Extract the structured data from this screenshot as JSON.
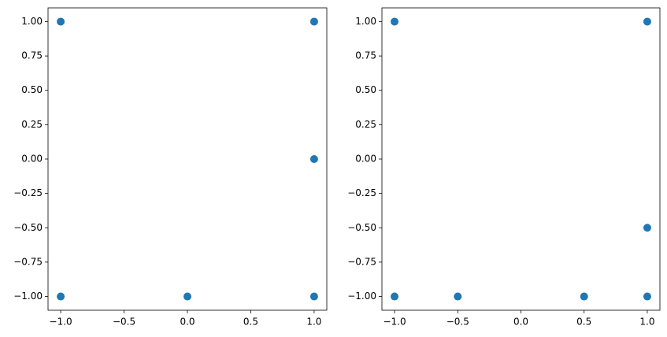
{
  "chart_data": [
    {
      "type": "scatter",
      "color": "#1f77b4",
      "x": [
        -1,
        1,
        1,
        -1,
        0,
        1
      ],
      "values": [
        1,
        1,
        0,
        -1,
        -1,
        -1
      ],
      "xlim": [
        -1.1,
        1.1
      ],
      "ylim": [
        -1.1,
        1.1
      ],
      "xticks": [
        {
          "value": -1,
          "label": "−1.0"
        },
        {
          "value": -0.5,
          "label": "−0.5"
        },
        {
          "value": 0,
          "label": "0.0"
        },
        {
          "value": 0.5,
          "label": "0.5"
        },
        {
          "value": 1,
          "label": "1.0"
        }
      ],
      "yticks": [
        {
          "value": -1,
          "label": "−1.00"
        },
        {
          "value": -0.75,
          "label": "−0.75"
        },
        {
          "value": -0.5,
          "label": "−0.50"
        },
        {
          "value": -0.25,
          "label": "−0.25"
        },
        {
          "value": 0,
          "label": "0.00"
        },
        {
          "value": 0.25,
          "label": "0.25"
        },
        {
          "value": 0.5,
          "label": "0.50"
        },
        {
          "value": 0.75,
          "label": "0.75"
        },
        {
          "value": 1,
          "label": "1.00"
        }
      ]
    },
    {
      "type": "scatter",
      "color": "#1f77b4",
      "x": [
        -1,
        1,
        1,
        -1,
        -0.5,
        0.5,
        1
      ],
      "values": [
        1,
        1,
        -0.5,
        -1,
        -1,
        -1,
        -1
      ],
      "xlim": [
        -1.1,
        1.1
      ],
      "ylim": [
        -1.1,
        1.1
      ],
      "xticks": [
        {
          "value": -1,
          "label": "−1.0"
        },
        {
          "value": -0.5,
          "label": "−0.5"
        },
        {
          "value": 0,
          "label": "0.0"
        },
        {
          "value": 0.5,
          "label": "0.5"
        },
        {
          "value": 1,
          "label": "1.0"
        }
      ],
      "yticks": [
        {
          "value": -1,
          "label": "−1.00"
        },
        {
          "value": -0.75,
          "label": "−0.75"
        },
        {
          "value": -0.5,
          "label": "−0.50"
        },
        {
          "value": -0.25,
          "label": "−0.25"
        },
        {
          "value": 0,
          "label": "0.00"
        },
        {
          "value": 0.25,
          "label": "0.25"
        },
        {
          "value": 0.5,
          "label": "0.50"
        },
        {
          "value": 0.75,
          "label": "0.75"
        },
        {
          "value": 1,
          "label": "1.00"
        }
      ]
    }
  ]
}
